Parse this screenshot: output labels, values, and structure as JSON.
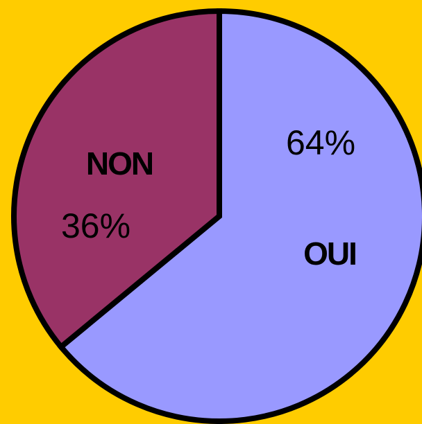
{
  "chart_data": {
    "type": "pie",
    "categories": [
      "OUI",
      "NON"
    ],
    "values": [
      64,
      36
    ],
    "value_labels": [
      "64%",
      "36%"
    ],
    "colors": [
      "#9999ff",
      "#993366"
    ]
  }
}
